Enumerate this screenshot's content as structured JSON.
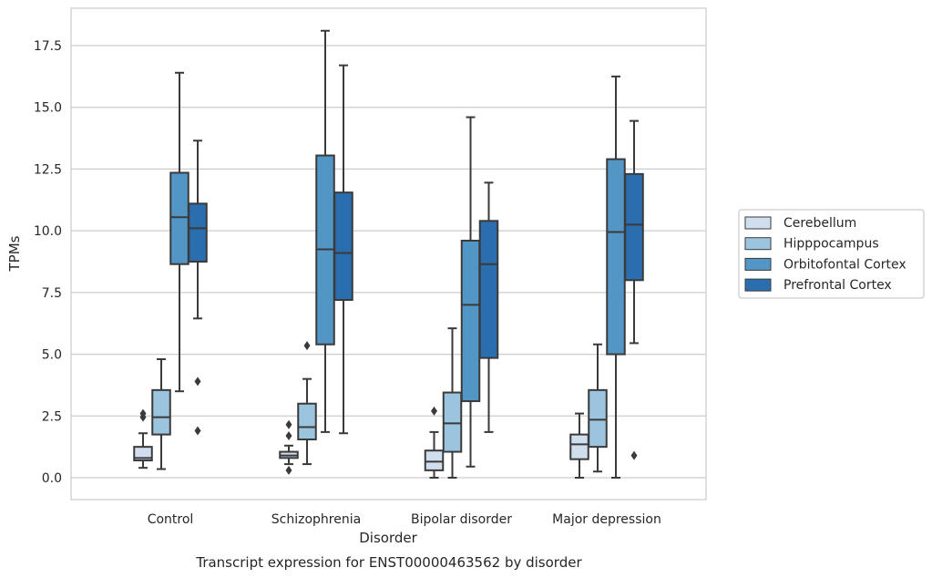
{
  "chart_data": {
    "type": "box",
    "title": "Transcript expression for ENST00000463562 by disorder",
    "xlabel": "Disorder",
    "ylabel": "TPMs",
    "ylim": [
      -0.85,
      18.6
    ],
    "yticks": [
      0.0,
      2.5,
      5.0,
      7.5,
      10.0,
      12.5,
      15.0,
      17.5
    ],
    "ytick_labels": [
      "0.0",
      "2.5",
      "5.0",
      "7.5",
      "10.0",
      "12.5",
      "15.0",
      "17.5"
    ],
    "grid": "horizontal",
    "legend_position": "right",
    "categories": [
      "Control",
      "Schizophrenia",
      "Bipolar disorder",
      "Major depression"
    ],
    "series": [
      {
        "name": "Cerebellum",
        "color": "#d1deee",
        "boxes": [
          {
            "whisker_low": 0.4,
            "q1": 0.7,
            "median": 0.8,
            "q3": 1.25,
            "whisker_high": 1.8,
            "outliers": [
              2.45,
              2.6
            ]
          },
          {
            "whisker_low": 0.55,
            "q1": 0.8,
            "median": 0.9,
            "q3": 1.05,
            "whisker_high": 1.3,
            "outliers": [
              2.15,
              1.7,
              0.3
            ]
          },
          {
            "whisker_low": 0.0,
            "q1": 0.3,
            "median": 0.65,
            "q3": 1.1,
            "whisker_high": 1.85,
            "outliers": [
              2.7
            ]
          },
          {
            "whisker_low": 0.0,
            "q1": 0.75,
            "median": 1.35,
            "q3": 1.75,
            "whisker_high": 2.6,
            "outliers": []
          }
        ]
      },
      {
        "name": "Hipppocampus",
        "color": "#9bc4de",
        "boxes": [
          {
            "whisker_low": 0.35,
            "q1": 1.75,
            "median": 2.45,
            "q3": 3.55,
            "whisker_high": 4.8,
            "outliers": []
          },
          {
            "whisker_low": 0.55,
            "q1": 1.55,
            "median": 2.05,
            "q3": 3.0,
            "whisker_high": 4.0,
            "outliers": [
              5.35
            ]
          },
          {
            "whisker_low": 0.0,
            "q1": 1.05,
            "median": 2.2,
            "q3": 3.45,
            "whisker_high": 6.05,
            "outliers": []
          },
          {
            "whisker_low": 0.25,
            "q1": 1.25,
            "median": 2.35,
            "q3": 3.55,
            "whisker_high": 5.4,
            "outliers": []
          }
        ]
      },
      {
        "name": "Orbitofontal Cortex",
        "color": "#5296c6",
        "boxes": [
          {
            "whisker_low": 3.5,
            "q1": 8.65,
            "median": 10.55,
            "q3": 12.35,
            "whisker_high": 16.4,
            "outliers": []
          },
          {
            "whisker_low": 1.85,
            "q1": 5.4,
            "median": 9.25,
            "q3": 13.05,
            "whisker_high": 18.1,
            "outliers": []
          },
          {
            "whisker_low": 0.45,
            "q1": 3.1,
            "median": 7.0,
            "q3": 9.6,
            "whisker_high": 14.6,
            "outliers": []
          },
          {
            "whisker_low": 0.0,
            "q1": 5.0,
            "median": 9.95,
            "q3": 12.9,
            "whisker_high": 16.25,
            "outliers": []
          }
        ]
      },
      {
        "name": "Prefrontal Cortex",
        "color": "#2a6eb0",
        "boxes": [
          {
            "whisker_low": 6.45,
            "q1": 8.75,
            "median": 10.1,
            "q3": 11.1,
            "whisker_high": 13.65,
            "outliers": [
              3.9,
              1.9
            ]
          },
          {
            "whisker_low": 1.8,
            "q1": 7.2,
            "median": 9.1,
            "q3": 11.55,
            "whisker_high": 16.7,
            "outliers": []
          },
          {
            "whisker_low": 1.85,
            "q1": 4.85,
            "median": 8.65,
            "q3": 10.4,
            "whisker_high": 11.95,
            "outliers": []
          },
          {
            "whisker_low": 5.45,
            "q1": 8.0,
            "median": 10.25,
            "q3": 12.3,
            "whisker_high": 14.45,
            "outliers": [
              0.9
            ]
          }
        ]
      }
    ]
  }
}
